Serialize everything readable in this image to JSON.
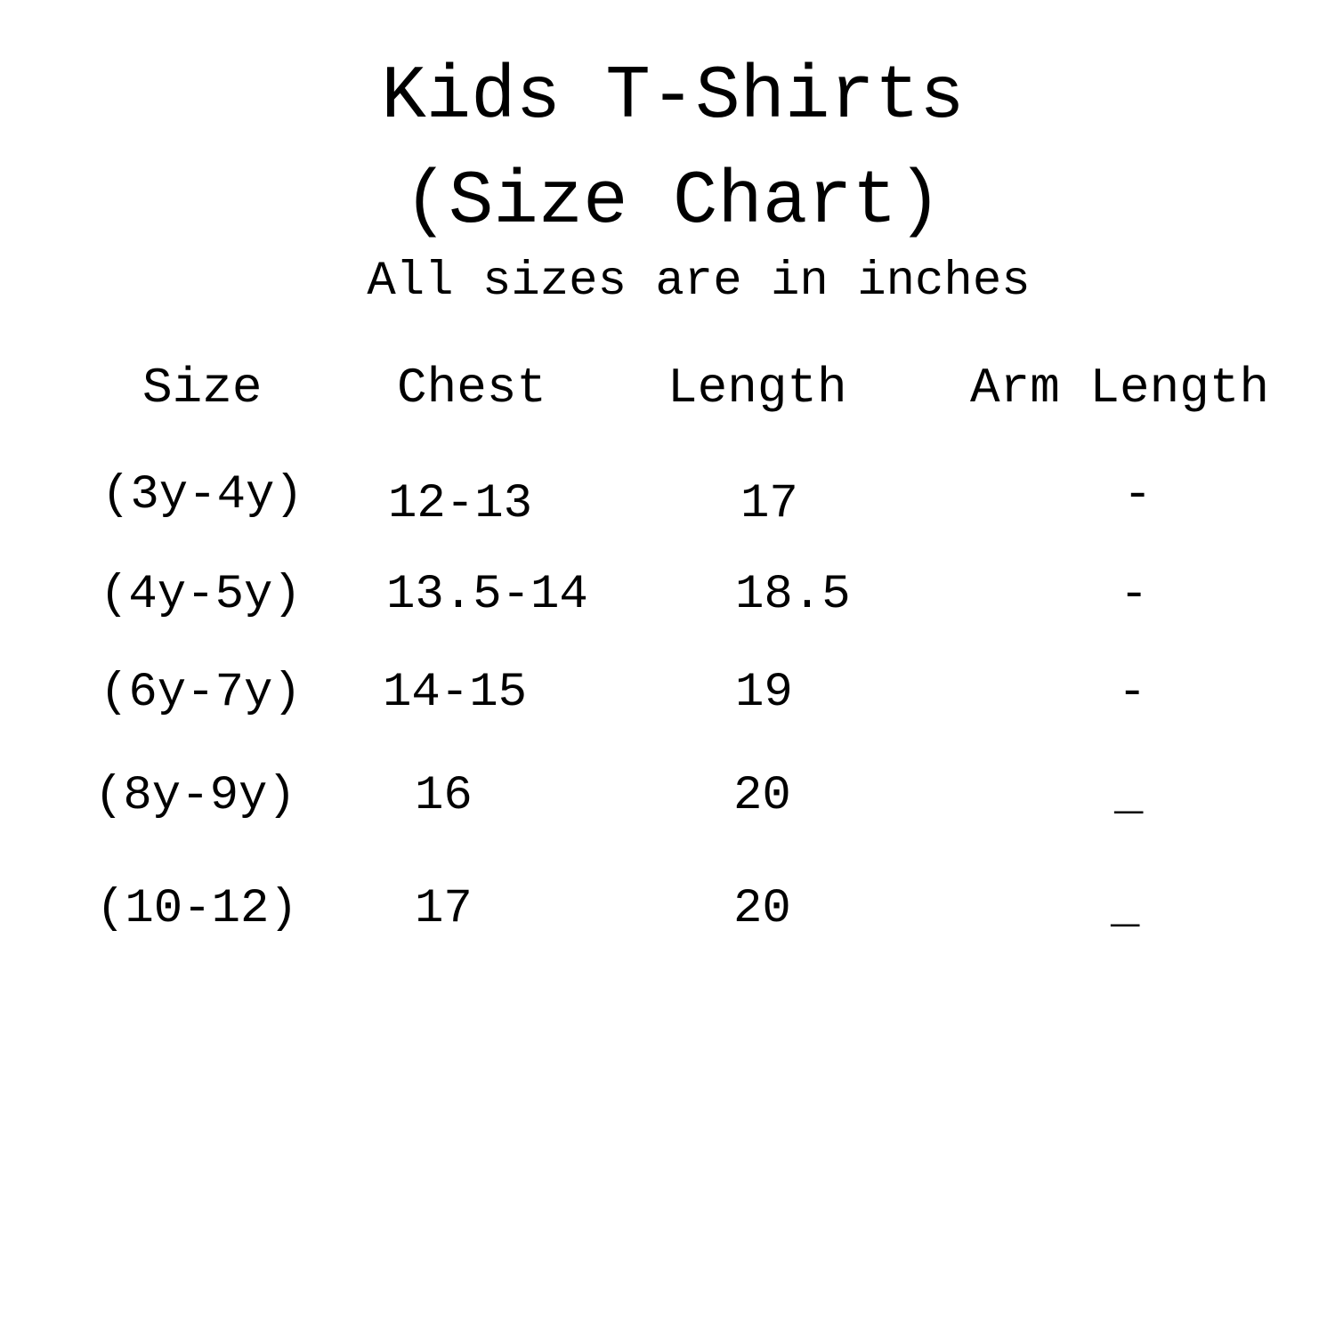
{
  "title_line1": "Kids T-Shirts",
  "title_line2": "(Size Chart)",
  "subtitle": "All sizes are in inches",
  "headers": [
    "Size",
    "Chest",
    "Length",
    "Arm Length"
  ],
  "rows": [
    [
      "(3y-4y)",
      "12-13",
      "17",
      "-"
    ],
    [
      "(4y-5y)",
      "13.5-14",
      "18.5",
      "-"
    ],
    [
      "(6y-7y)",
      "14-15",
      "19",
      "-"
    ],
    [
      "(8y-9y)",
      "16",
      "20",
      "_"
    ],
    [
      "(10-12)",
      "17",
      "20",
      "_"
    ]
  ]
}
